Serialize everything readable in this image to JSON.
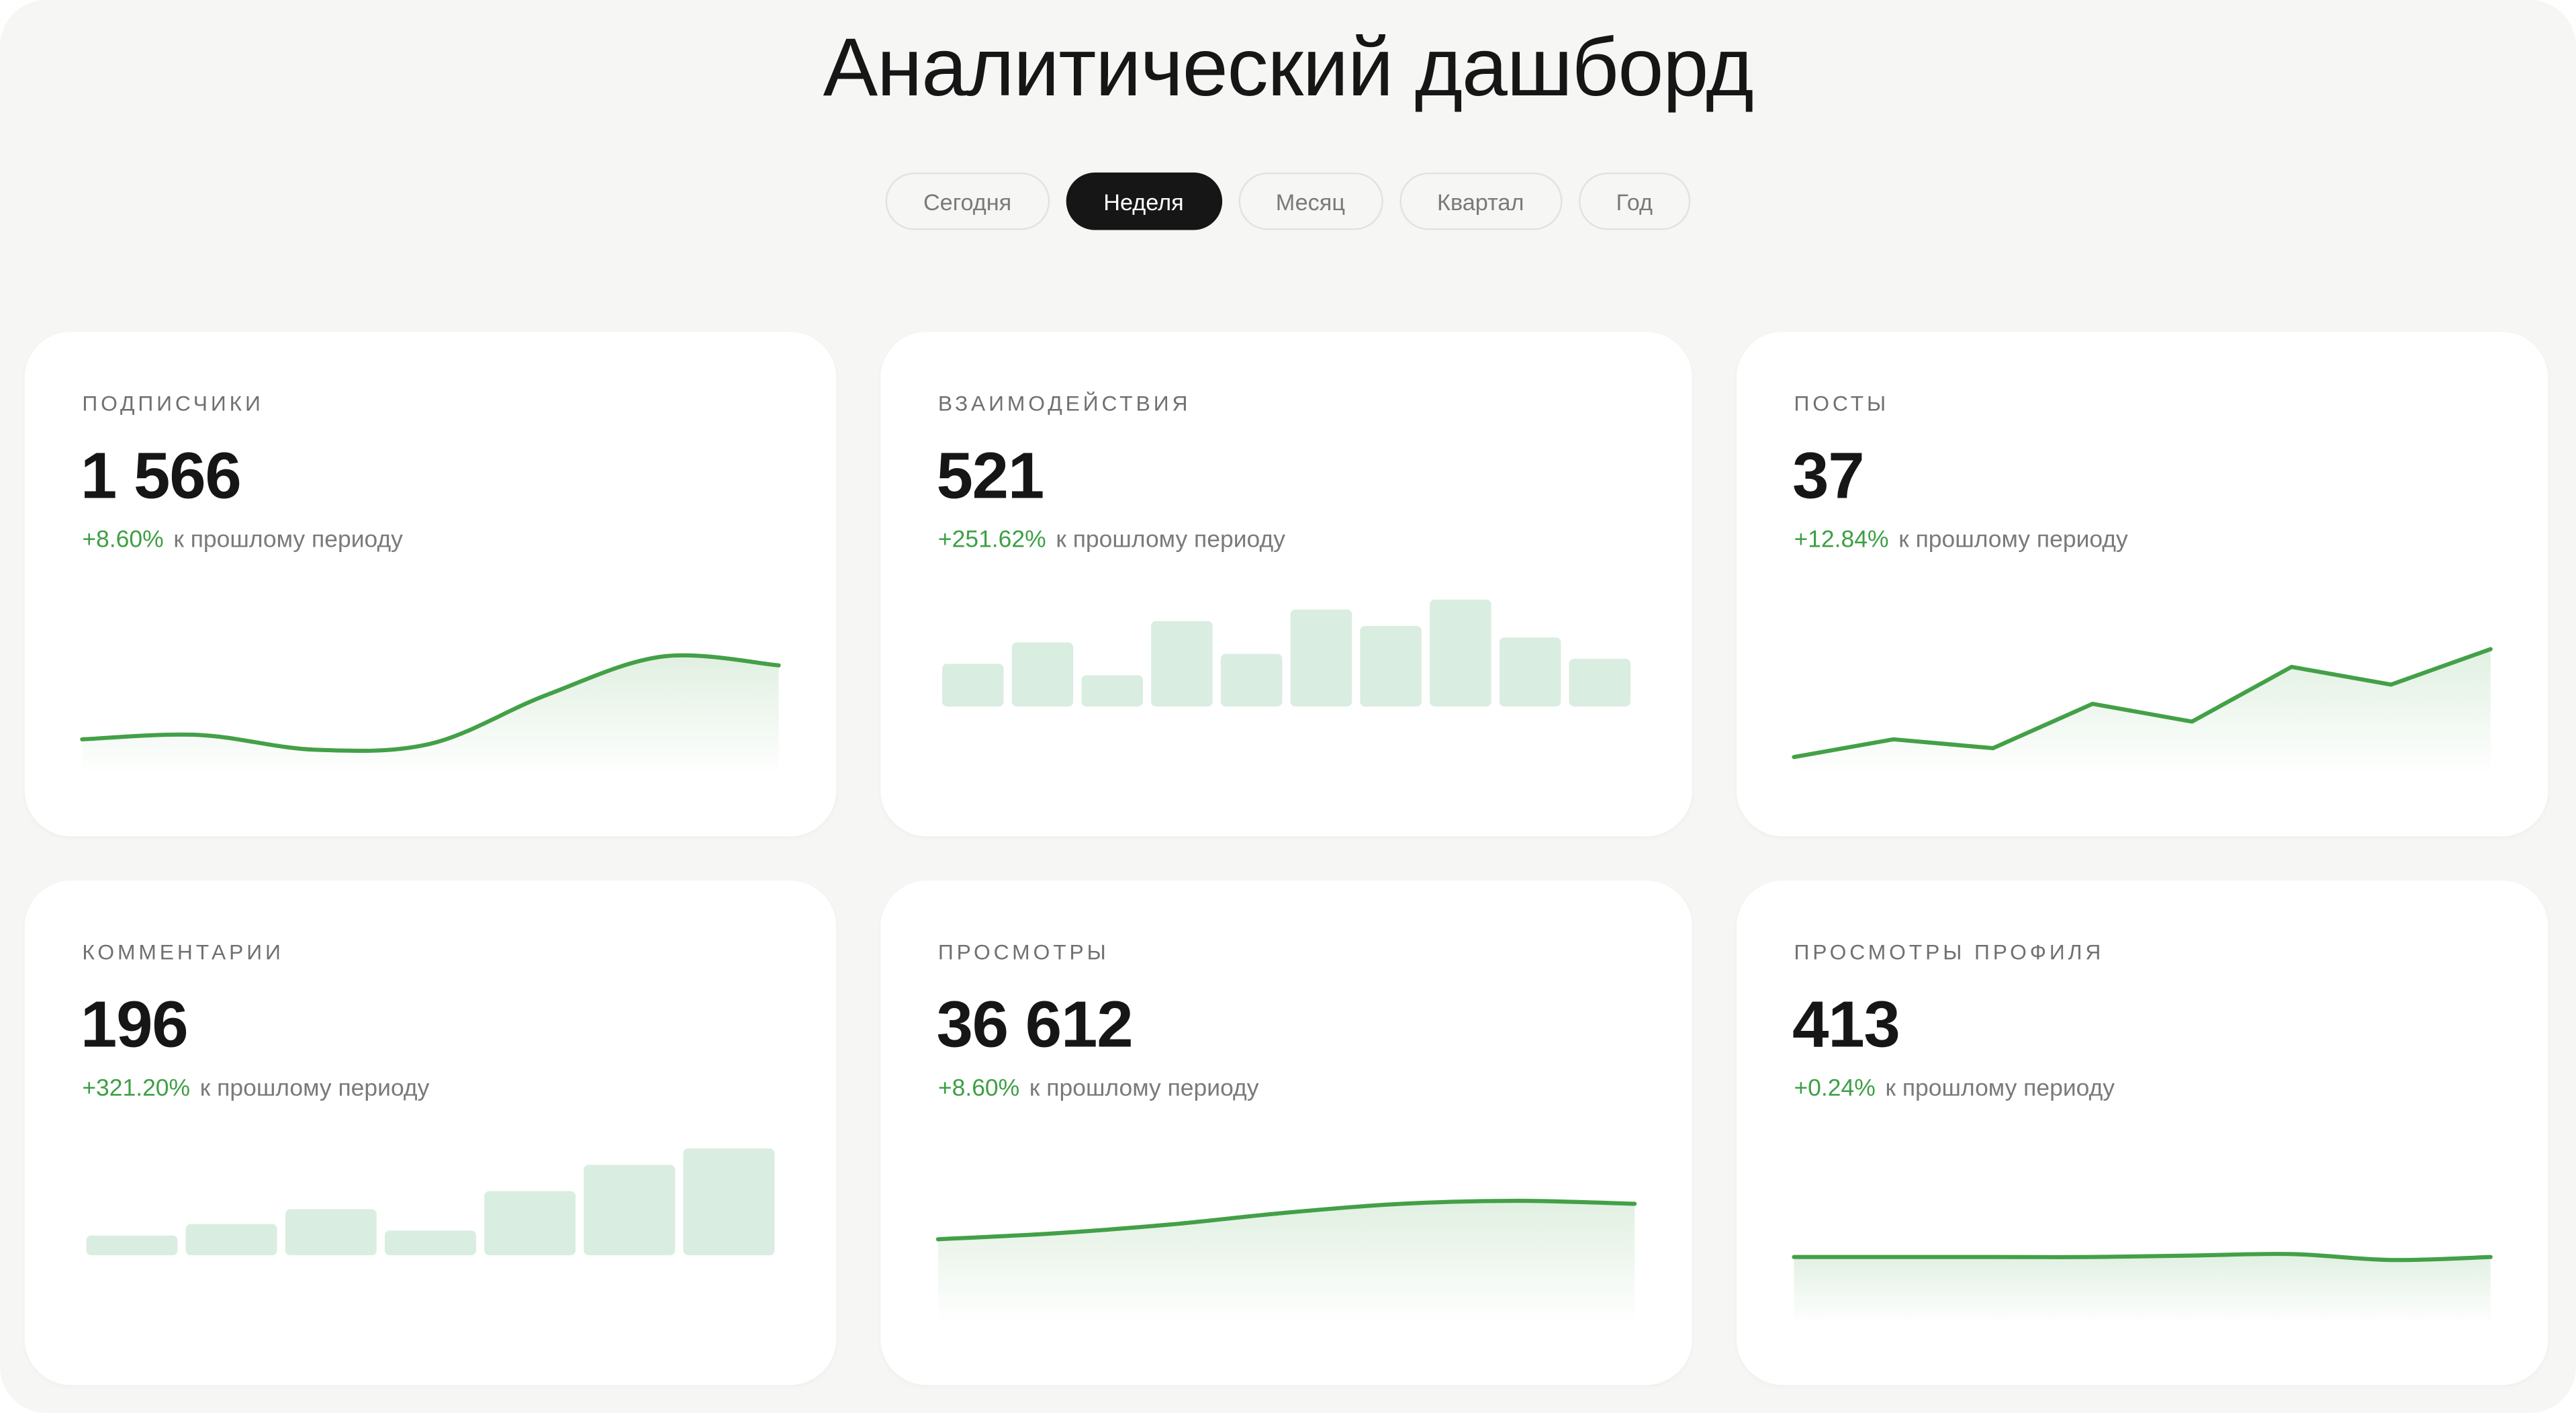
{
  "header": {
    "title": "Аналитический дашборд"
  },
  "tabs": [
    {
      "label": "Сегодня",
      "active": false
    },
    {
      "label": "Неделя",
      "active": true
    },
    {
      "label": "Месяц",
      "active": false
    },
    {
      "label": "Квартал",
      "active": false
    },
    {
      "label": "Год",
      "active": false
    }
  ],
  "cards": [
    {
      "label": "ПОДПИСЧИКИ",
      "value": "1 566",
      "change": "+8.60%",
      "change_note": "к прошлому периоду",
      "chart": {
        "type": "area",
        "smooth": true,
        "ylim": [
          0,
          100
        ],
        "values": [
          20,
          23,
          13,
          17,
          50,
          76,
          70
        ],
        "color": "#43a047"
      }
    },
    {
      "label": "ВЗАИМОДЕЙСТВИЯ",
      "value": "521",
      "change": "+251.62%",
      "change_note": "к прошлому периоду",
      "chart": {
        "type": "bar",
        "ylim": [
          0,
          70
        ],
        "values": [
          26,
          39,
          19,
          52,
          32,
          59,
          49,
          65,
          42,
          29
        ],
        "color": "#d9ede0"
      }
    },
    {
      "label": "ПОСТЫ",
      "value": "37",
      "change": "+12.84%",
      "change_note": "к прошлому периоду",
      "chart": {
        "type": "area",
        "smooth": false,
        "ylim": [
          0,
          100
        ],
        "values": [
          8,
          20,
          14,
          44,
          32,
          69,
          57,
          81
        ],
        "color": "#43a047"
      }
    },
    {
      "label": "КОММЕНТАРИИ",
      "value": "196",
      "change": "+321.20%",
      "change_note": "к прошлому периоду",
      "chart": {
        "type": "bar",
        "ylim": [
          0,
          70
        ],
        "values": [
          12,
          19,
          28,
          15,
          39,
          55,
          65
        ],
        "color": "#d9ede0"
      }
    },
    {
      "label": "ПРОСМОТРЫ",
      "value": "36 612",
      "change": "+8.60%",
      "change_note": "к прошлому периоду",
      "chart": {
        "type": "area",
        "smooth": true,
        "ylim": [
          0,
          100
        ],
        "values": [
          53,
          57,
          63,
          71,
          77,
          79,
          77
        ],
        "color": "#43a047"
      }
    },
    {
      "label": "ПРОСМОТРЫ ПРОФИЛЯ",
      "value": "413",
      "change": "+0.24%",
      "change_note": "к прошлому периоду",
      "chart": {
        "type": "area",
        "smooth": true,
        "ylim": [
          0,
          100
        ],
        "values": [
          41,
          41,
          41,
          41,
          42,
          43,
          39,
          41
        ],
        "color": "#43a047"
      }
    }
  ]
}
